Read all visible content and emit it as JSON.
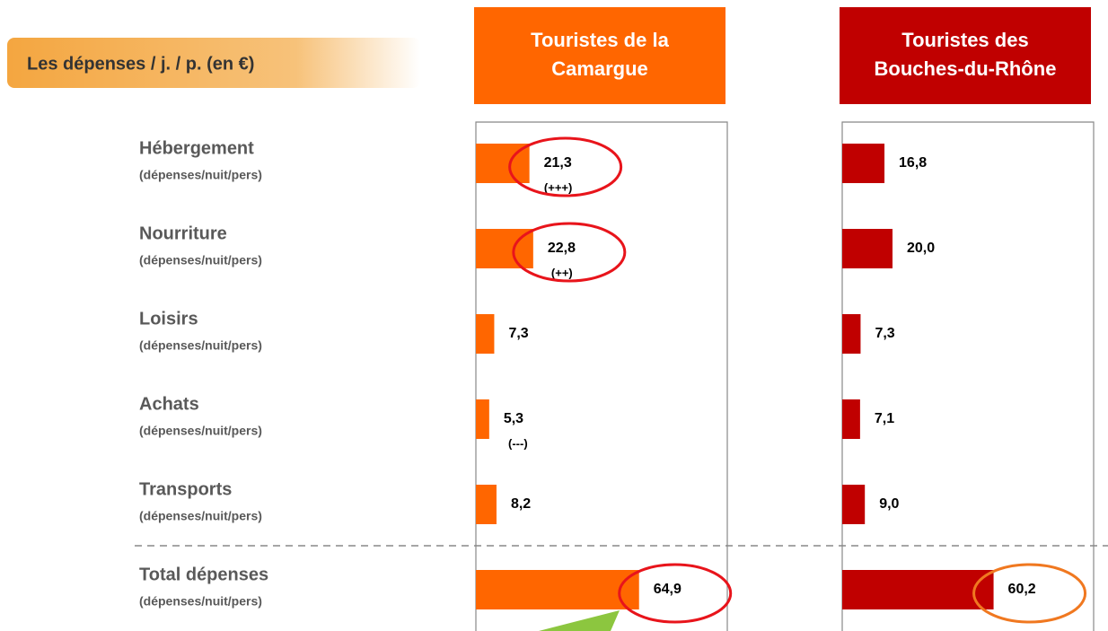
{
  "chart_data": {
    "type": "bar",
    "orientation": "horizontal",
    "title": "Les dépenses / j. / p. (en €)",
    "categories": [
      "Hébergement",
      "Nourriture",
      "Loisirs",
      "Achats",
      "Transports",
      "Total dépenses"
    ],
    "category_note": "(dépenses/nuit/pers)",
    "xlim": [
      0,
      100
    ],
    "series": [
      {
        "name": "Touristes de la Camargue",
        "color": "#ff6600",
        "values": [
          21.3,
          22.8,
          7.3,
          5.3,
          8.2,
          64.9
        ],
        "value_labels": [
          "21,3",
          "22,8",
          "7,3",
          "5,3",
          "8,2",
          "64,9"
        ],
        "annotations": [
          "(+++)",
          "(++)",
          null,
          "(---)",
          null,
          null
        ],
        "highlights": [
          {
            "index": 0,
            "color": "#e8141b"
          },
          {
            "index": 1,
            "color": "#e8141b"
          },
          {
            "index": 5,
            "color": "#e8141b"
          }
        ]
      },
      {
        "name": "Touristes des Bouches-du-Rhône",
        "color": "#c00000",
        "values": [
          16.8,
          20.0,
          7.3,
          7.1,
          9.0,
          60.2
        ],
        "value_labels": [
          "16,8",
          "20,0",
          "7,3",
          "7,1",
          "9,0",
          "60,2"
        ],
        "annotations": [
          null,
          null,
          null,
          null,
          null,
          null
        ],
        "highlights": [
          {
            "index": 5,
            "color": "#f07820"
          }
        ]
      }
    ]
  }
}
